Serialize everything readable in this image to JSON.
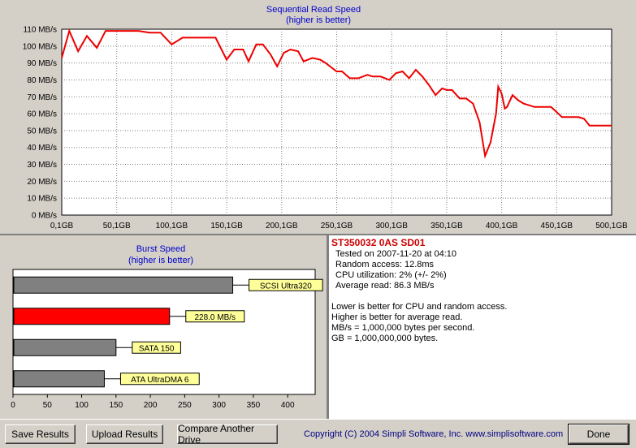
{
  "chart_data": [
    {
      "type": "line",
      "title": "Sequential Read Speed",
      "subtitle": "(higher is better)",
      "x_ticks": [
        "0,1GB",
        "50,1GB",
        "100,1GB",
        "150,1GB",
        "200,1GB",
        "250,1GB",
        "300,1GB",
        "350,1GB",
        "400,1GB",
        "450,1GB",
        "500,1GB"
      ],
      "y_ticks": [
        "0 MB/s",
        "10 MB/s",
        "20 MB/s",
        "30 MB/s",
        "40 MB/s",
        "50 MB/s",
        "60 MB/s",
        "70 MB/s",
        "80 MB/s",
        "90 MB/s",
        "100 MB/s",
        "110 MB/s"
      ],
      "xlim": [
        0.1,
        500.1
      ],
      "ylim": [
        0,
        110
      ],
      "grid": true,
      "line_color": "#ee0000",
      "series": [
        {
          "x": [
            0.1,
            7,
            15,
            23,
            32,
            40,
            50,
            60,
            70,
            80,
            90,
            100,
            110,
            120,
            130,
            140,
            150,
            157,
            165,
            170,
            177,
            183,
            190,
            196,
            202,
            208,
            215,
            220,
            228,
            235,
            240,
            250,
            255,
            262,
            270,
            278,
            283,
            290,
            298,
            304,
            310,
            316,
            322,
            328,
            334,
            340,
            346,
            350,
            355,
            362,
            368,
            374,
            380,
            385,
            390,
            395,
            397,
            400,
            403,
            405,
            410,
            415,
            420,
            425,
            430,
            440,
            445,
            450,
            455,
            460,
            470,
            475,
            480,
            490,
            500.1
          ],
          "y": [
            93,
            109,
            97,
            106,
            99,
            109,
            109,
            109,
            109,
            108,
            108,
            101,
            105,
            105,
            105,
            105,
            92,
            98,
            98,
            91,
            101,
            101,
            95,
            88,
            96,
            98,
            97,
            91,
            93,
            92,
            90,
            85,
            85,
            81,
            81,
            83,
            82,
            82,
            80,
            84,
            85,
            81,
            86,
            82,
            77,
            71,
            75,
            74,
            74,
            69,
            69,
            66,
            55,
            35,
            43,
            60,
            76,
            72,
            63,
            64,
            71,
            68,
            66,
            65,
            64,
            64,
            64,
            61,
            58,
            58,
            58,
            57,
            53,
            53,
            53
          ]
        }
      ]
    },
    {
      "type": "bar",
      "orientation": "horizontal",
      "title": "Burst Speed",
      "subtitle": "(higher is better)",
      "categories": [
        "SCSI Ultra320",
        "228.0 MB/s",
        "SATA 150",
        "ATA UltraDMA 6"
      ],
      "values": [
        320,
        228,
        150,
        133
      ],
      "bar_colors": [
        "#808080",
        "#ff0000",
        "#808080",
        "#808080"
      ],
      "x_ticks": [
        "0",
        "50",
        "100",
        "150",
        "200",
        "250",
        "300",
        "350",
        "400"
      ],
      "xlim": [
        0,
        440
      ]
    }
  ],
  "info": {
    "drive_name": "ST350032 0AS SD01",
    "tested": "Tested on 2007-11-20 at 04:10",
    "random_access": "Random access: 12.8ms",
    "cpu": "CPU utilization: 2% (+/- 2%)",
    "average_read": "Average read: 86.3 MB/s",
    "notes": [
      "Lower is better for CPU and random access.",
      "Higher is better for average read.",
      "MB/s = 1,000,000 bytes per second.",
      "GB = 1,000,000,000 bytes."
    ]
  },
  "buttons": {
    "save": "Save Results",
    "upload": "Upload Results",
    "compare": "Compare Another Drive",
    "done": "Done"
  },
  "copyright": "Copyright (C) 2004 Simpli Software, Inc. www.simplisoftware.com"
}
